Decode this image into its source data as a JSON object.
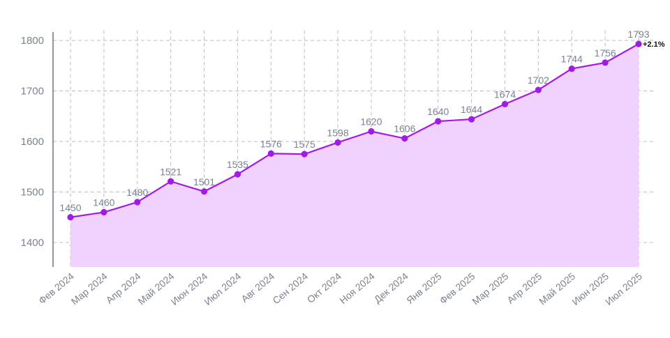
{
  "chart_data": {
    "type": "area",
    "title": "",
    "xlabel": "",
    "ylabel": "",
    "categories": [
      "Фев 2024",
      "Мар 2024",
      "Апр 2024",
      "Май 2024",
      "Июн 2024",
      "Июл 2024",
      "Авг 2024",
      "Сен 2024",
      "Окт 2024",
      "Ноя 2024",
      "Дек 2024",
      "Янв 2025",
      "Фев 2025",
      "Мар 2025",
      "Апр 2025",
      "Май 2025",
      "Июн 2025",
      "Июл 2025"
    ],
    "series": [
      {
        "values": [
          1450,
          1460,
          1480,
          1521,
          1501,
          1535,
          1576,
          1575,
          1598,
          1620,
          1606,
          1640,
          1644,
          1674,
          1702,
          1744,
          1756,
          1793
        ]
      }
    ],
    "yticks": [
      1400,
      1500,
      1600,
      1700,
      1800
    ],
    "ylim": [
      1353,
      1820
    ],
    "grid": true,
    "data_labels": true,
    "change_label": "+2.1%",
    "colors": {
      "line": "#a11be6",
      "fill": "#f1d1fd",
      "grid": "#b9bcc4",
      "axis": "#6b7280",
      "text": "#7a8391"
    }
  }
}
